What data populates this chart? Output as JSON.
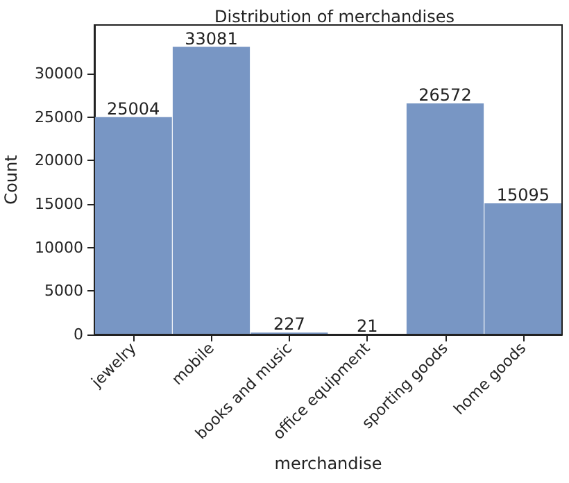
{
  "chart_data": {
    "type": "bar",
    "title": "Distribution of merchandises",
    "xlabel": "merchandise",
    "ylabel": "Count",
    "categories": [
      "jewelry",
      "mobile",
      "books and music",
      "office equipment",
      "sporting goods",
      "home goods"
    ],
    "values": [
      25004,
      33081,
      227,
      21,
      26572,
      15095
    ],
    "color": "#7896c4",
    "data_labels": true,
    "ylim": [
      0,
      35600
    ],
    "yticks": [
      0,
      5000,
      10000,
      15000,
      20000,
      25000,
      30000
    ],
    "grid": false
  }
}
